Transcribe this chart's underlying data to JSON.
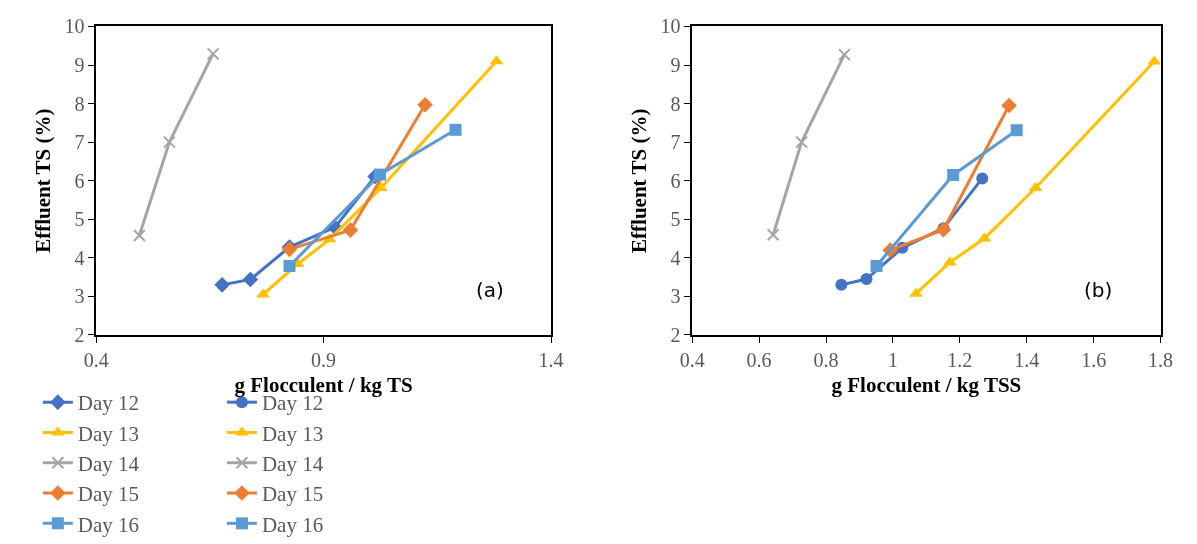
{
  "chart_data": [
    {
      "type": "line",
      "xlabel": "g Flocculent / kg TS",
      "ylabel": "Effluent TS (%)",
      "annotations": [
        "(a)"
      ],
      "xlim": [
        0.4,
        1.4
      ],
      "xticks": [
        0.4,
        0.9,
        1.4
      ],
      "ylim": [
        2,
        10
      ],
      "yticks": [
        2,
        3,
        4,
        5,
        6,
        7,
        8,
        9,
        10
      ],
      "legend": "bottom",
      "line_style": "solid",
      "series": [
        {
          "name": "Day 12",
          "color": "#4472c4",
          "marker": "diamond",
          "x": [
            0.677,
            0.739,
            0.825,
            0.925,
            1.013
          ],
          "values": [
            3.3,
            3.44,
            4.28,
            4.79,
            6.11
          ]
        },
        {
          "name": "Day 13",
          "color": "#ffc000",
          "marker": "triangle",
          "x": [
            0.767,
            0.843,
            0.913,
            1.026,
            1.28
          ],
          "values": [
            3.05,
            3.84,
            4.48,
            5.81,
            9.1
          ]
        },
        {
          "name": "Day 14",
          "color": "#a5a5a5",
          "marker": "cross",
          "x": [
            0.495,
            0.561,
            0.657
          ],
          "values": [
            4.58,
            7.0,
            9.29
          ]
        },
        {
          "name": "Day 15",
          "color": "#ed7d31",
          "marker": "diamond",
          "x": [
            0.825,
            0.959,
            1.123
          ],
          "values": [
            4.22,
            4.72,
            7.97
          ]
        },
        {
          "name": "Day 16",
          "color": "#5b9bd5",
          "marker": "square",
          "x": [
            0.825,
            1.024,
            1.19
          ],
          "values": [
            3.79,
            6.16,
            7.32
          ]
        }
      ]
    },
    {
      "type": "line",
      "xlabel": "g Flocculent / kg TSS",
      "ylabel": "Effluent TS (%)",
      "annotations": [
        "(b)"
      ],
      "xlim": [
        0.4,
        1.8
      ],
      "xticks": [
        0.4,
        0.6,
        0.8,
        1,
        1.2,
        1.4,
        1.6,
        1.8
      ],
      "ylim": [
        2,
        10
      ],
      "yticks": [
        2,
        3,
        4,
        5,
        6,
        7,
        8,
        9,
        10
      ],
      "legend": "bottom",
      "line_style": "solid",
      "series": [
        {
          "name": "Day 12",
          "color": "#4472c4",
          "marker": "circle",
          "x": [
            0.846,
            0.921,
            1.028,
            1.151,
            1.267
          ],
          "values": [
            3.3,
            3.45,
            4.26,
            4.77,
            6.06
          ]
        },
        {
          "name": "Day 13",
          "color": "#ffc000",
          "marker": "triangle",
          "x": [
            1.069,
            1.17,
            1.273,
            1.426,
            1.781
          ],
          "values": [
            3.07,
            3.88,
            4.5,
            5.81,
            9.09
          ]
        },
        {
          "name": "Day 14",
          "color": "#a5a5a5",
          "marker": "cross",
          "x": [
            0.642,
            0.727,
            0.855
          ],
          "values": [
            4.6,
            7.0,
            9.27
          ]
        },
        {
          "name": "Day 15",
          "color": "#ed7d31",
          "marker": "diamond",
          "x": [
            0.992,
            1.151,
            1.347
          ],
          "values": [
            4.2,
            4.73,
            7.95
          ]
        },
        {
          "name": "Day 16",
          "color": "#5b9bd5",
          "marker": "square",
          "x": [
            0.951,
            1.18,
            1.37
          ],
          "values": [
            3.79,
            6.15,
            7.31
          ]
        }
      ]
    }
  ]
}
